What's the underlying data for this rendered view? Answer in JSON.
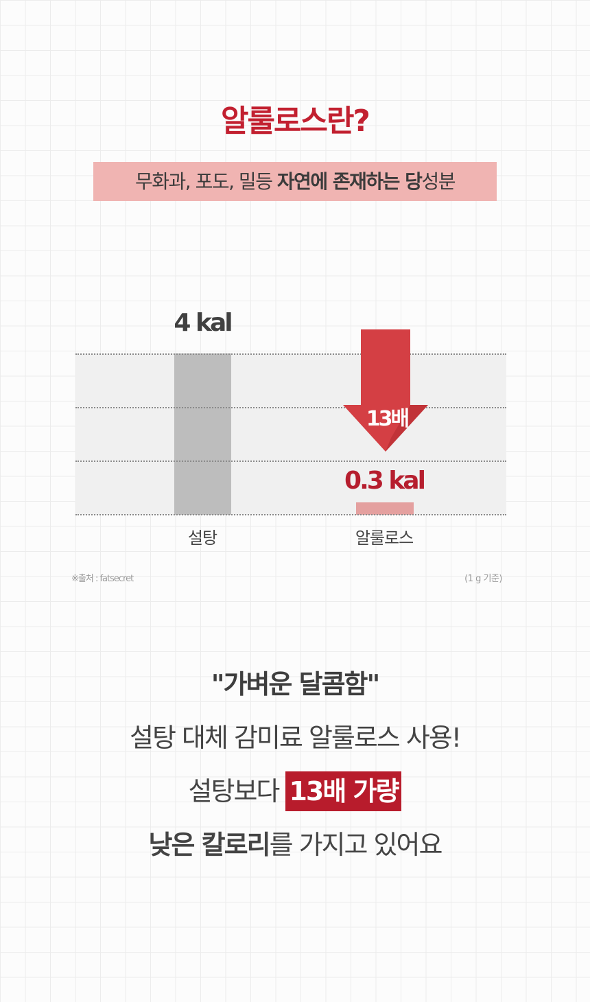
{
  "title": "알룰로스란?",
  "subtitle": {
    "part1": "무화과, 포도, 밀등 ",
    "part2_bold": "자연에 존재하는 당",
    "part3": "성분"
  },
  "chart_data": {
    "type": "bar",
    "categories": [
      "설탕",
      "알룰로스"
    ],
    "values": [
      4,
      0.3
    ],
    "value_labels": [
      "4 kal",
      "0.3 kal"
    ],
    "annotation": "13배",
    "source": "※출처 : fatsecret",
    "unit_note": "(1 g 기준)",
    "ylim": [
      0,
      4
    ],
    "grid": true,
    "colors": {
      "sugar": "#bdbdbd",
      "allulose": "#e4a09f",
      "arrow": "#d43f44"
    }
  },
  "message": {
    "line1": "\"가벼운 달콤함\"",
    "line2": "설탕 대체 감미료 알룰로스 사용!",
    "line3_prefix": "설탕보다",
    "line3_highlight": "13배 가량",
    "line4_bold": "낮은 칼로리",
    "line4_rest": "를 가지고 있어요"
  },
  "colors": {
    "accent": "#c22030",
    "highlight_bg": "#f0b4b2"
  }
}
